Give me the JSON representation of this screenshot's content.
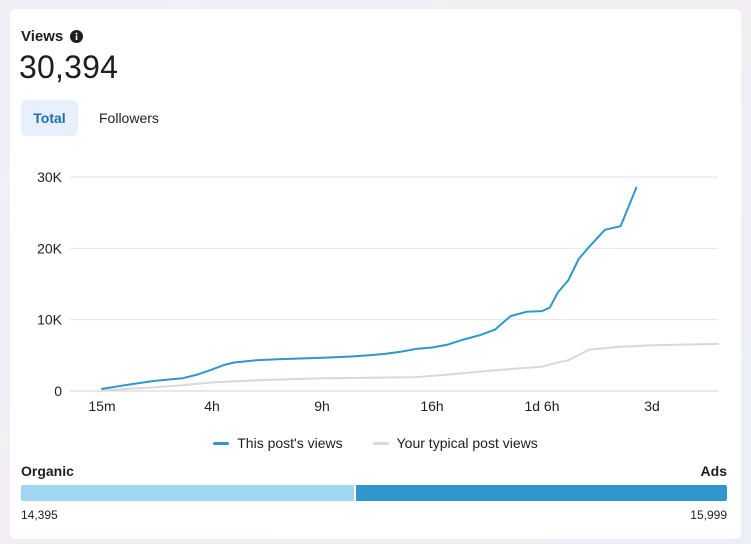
{
  "header": {
    "title": "Views",
    "total": "30,394"
  },
  "tabs": [
    {
      "label": "Total",
      "selected": true
    },
    {
      "label": "Followers",
      "selected": false
    }
  ],
  "colors": {
    "post_line": "#2f97cc",
    "typical_line": "#d9d9d9",
    "organic": "#a0d8f3",
    "ads": "#2f97cc",
    "grid": "#e4e6eb"
  },
  "chart_data": {
    "type": "line",
    "title": "",
    "xlabel": "",
    "ylabel": "",
    "ylim": [
      0,
      30000
    ],
    "y_ticks": [
      {
        "value": 0,
        "label": "0"
      },
      {
        "value": 10000,
        "label": "10K"
      },
      {
        "value": 20000,
        "label": "20K"
      },
      {
        "value": 30000,
        "label": "30K"
      }
    ],
    "x_ticks": [
      {
        "hours": 0.25,
        "label": "15m"
      },
      {
        "hours": 4,
        "label": "4h"
      },
      {
        "hours": 9,
        "label": "9h"
      },
      {
        "hours": 16,
        "label": "16h"
      },
      {
        "hours": 30,
        "label": "1d 6h"
      },
      {
        "hours": 72,
        "label": "3d"
      }
    ],
    "grid": true,
    "legend_position": "bottom",
    "series": [
      {
        "name": "This post's views",
        "color": "#2f97cc",
        "points": [
          [
            "15m",
            300
          ],
          [
            "1h",
            800
          ],
          [
            "2h",
            1400
          ],
          [
            "3h",
            1800
          ],
          [
            "3h 30m",
            2300
          ],
          [
            "4h",
            3000
          ],
          [
            "4h 30m",
            3600
          ],
          [
            "5h",
            4000
          ],
          [
            "6h",
            4300
          ],
          [
            "7h",
            4450
          ],
          [
            "8h",
            4550
          ],
          [
            "9h",
            4650
          ],
          [
            "10h",
            4750
          ],
          [
            "11h",
            4850
          ],
          [
            "12h",
            5000
          ],
          [
            "13h",
            5200
          ],
          [
            "14h",
            5500
          ],
          [
            "15h",
            5900
          ],
          [
            "16h",
            6100
          ],
          [
            "18h",
            6500
          ],
          [
            "20h",
            7200
          ],
          [
            "22h",
            7800
          ],
          [
            "1d",
            8600
          ],
          [
            "1d 2h",
            10500
          ],
          [
            "1d 4h",
            11100
          ],
          [
            "1d 6h",
            11200
          ],
          [
            "1d 9h",
            11700
          ],
          [
            "1d 12h",
            13800
          ],
          [
            "1d 16h",
            15500
          ],
          [
            "1d 20h",
            18500
          ],
          [
            "2d",
            20200
          ],
          [
            "2d 6h",
            22600
          ],
          [
            "2d 12h",
            23100
          ],
          [
            "2d 18h",
            28500
          ]
        ]
      },
      {
        "name": "Your typical post views",
        "color": "#d9d9d9",
        "points": [
          [
            "15m",
            100
          ],
          [
            "2h",
            500
          ],
          [
            "3h",
            800
          ],
          [
            "4h",
            1200
          ],
          [
            "6h",
            1500
          ],
          [
            "9h",
            1800
          ],
          [
            "12h",
            1850
          ],
          [
            "15h",
            1950
          ],
          [
            "18h",
            2300
          ],
          [
            "1d",
            2900
          ],
          [
            "1d 6h",
            3400
          ],
          [
            "1d 12h",
            4000
          ],
          [
            "1d 16h",
            4300
          ],
          [
            "2d",
            5800
          ],
          [
            "2d 12h",
            6200
          ],
          [
            "3d",
            6400
          ],
          [
            "3d 12h",
            6600
          ]
        ]
      }
    ]
  },
  "legend": [
    {
      "label": "This post's views",
      "color": "#2f97cc"
    },
    {
      "label": "Your typical post views",
      "color": "#d9d9d9"
    }
  ],
  "split": {
    "left_label": "Organic",
    "right_label": "Ads",
    "left_value": "14,395",
    "right_value": "15,999",
    "left_number": 14395,
    "right_number": 15999
  }
}
